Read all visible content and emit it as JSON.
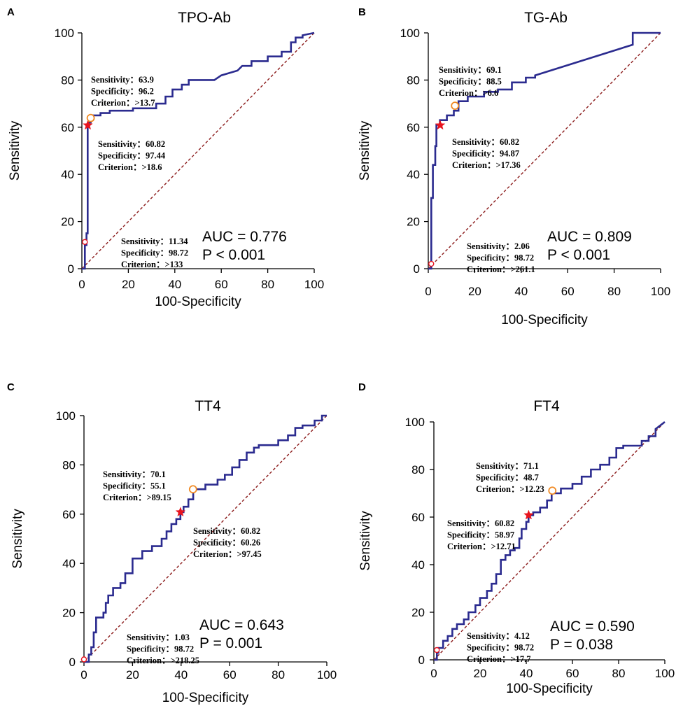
{
  "chart_data": [
    {
      "type": "line",
      "panel": "A",
      "title": "TPO-Ab",
      "xlabel": "100-Specificity",
      "ylabel": "Sensitivity",
      "xlim": [
        0,
        100
      ],
      "ylim": [
        0,
        100
      ],
      "xticks": [
        0,
        20,
        40,
        60,
        80,
        100
      ],
      "yticks": [
        0,
        20,
        40,
        60,
        80,
        100
      ],
      "roc": [
        [
          0,
          0
        ],
        [
          1.3,
          0
        ],
        [
          1.3,
          10
        ],
        [
          2,
          10
        ],
        [
          2,
          15
        ],
        [
          2.5,
          15
        ],
        [
          2.5,
          60.8
        ],
        [
          3,
          60.8
        ],
        [
          3,
          62
        ],
        [
          3.8,
          62
        ],
        [
          3.8,
          63.9
        ],
        [
          5,
          63.9
        ],
        [
          5,
          65
        ],
        [
          8,
          65
        ],
        [
          8,
          66
        ],
        [
          12,
          66
        ],
        [
          12,
          67
        ],
        [
          22,
          67
        ],
        [
          22,
          68
        ],
        [
          32,
          68
        ],
        [
          32,
          70
        ],
        [
          36,
          70
        ],
        [
          36,
          73
        ],
        [
          39,
          73
        ],
        [
          39,
          76
        ],
        [
          43,
          76
        ],
        [
          43,
          78
        ],
        [
          46,
          78
        ],
        [
          46,
          80
        ],
        [
          57,
          80
        ],
        [
          60,
          82
        ],
        [
          67,
          84
        ],
        [
          69,
          86
        ],
        [
          73,
          86
        ],
        [
          73,
          88
        ],
        [
          80,
          88
        ],
        [
          80,
          90
        ],
        [
          86,
          90
        ],
        [
          86,
          92
        ],
        [
          90,
          92
        ],
        [
          90,
          96
        ],
        [
          92,
          96
        ],
        [
          92,
          98
        ],
        [
          95,
          98
        ],
        [
          95,
          99
        ],
        [
          100,
          100
        ]
      ],
      "points": [
        {
          "kind": "open-red",
          "x": 1.3,
          "y": 11.34
        },
        {
          "kind": "star",
          "x": 2.56,
          "y": 60.82
        },
        {
          "kind": "open-orange",
          "x": 3.8,
          "y": 63.9
        }
      ],
      "annotations": [
        {
          "lines": [
            "Sensitivity：63.9",
            "Specificity：96.2",
            "Criterion：>13.7"
          ]
        },
        {
          "lines": [
            "Sensitivity：60.82",
            "Specificity：97.44",
            "Criterion：>18.6"
          ]
        },
        {
          "lines": [
            "Sensitivity：11.34",
            "Specificity：98.72",
            "Criterion：>133"
          ]
        }
      ],
      "auc": "AUC = 0.776",
      "p": "P < 0.001"
    },
    {
      "type": "line",
      "panel": "B",
      "title": "TG-Ab",
      "xlabel": "100-Specificity",
      "ylabel": "Sensitivity",
      "xlim": [
        0,
        100
      ],
      "ylim": [
        0,
        100
      ],
      "xticks": [
        0,
        20,
        40,
        60,
        80,
        100
      ],
      "yticks": [
        0,
        20,
        40,
        60,
        80,
        100
      ],
      "roc": [
        [
          0,
          0
        ],
        [
          1.3,
          0
        ],
        [
          1.3,
          2
        ],
        [
          1.3,
          30
        ],
        [
          2,
          30
        ],
        [
          2,
          44
        ],
        [
          3,
          44
        ],
        [
          3,
          52
        ],
        [
          3.5,
          52
        ],
        [
          3.5,
          61
        ],
        [
          5,
          61
        ],
        [
          5,
          63
        ],
        [
          8,
          63
        ],
        [
          8,
          65
        ],
        [
          11,
          65
        ],
        [
          11,
          67
        ],
        [
          13,
          67
        ],
        [
          13,
          71
        ],
        [
          17,
          71
        ],
        [
          17,
          73
        ],
        [
          24,
          73
        ],
        [
          24,
          75
        ],
        [
          30,
          75
        ],
        [
          30,
          76
        ],
        [
          36,
          76
        ],
        [
          36,
          79
        ],
        [
          42,
          79
        ],
        [
          42,
          81
        ],
        [
          46,
          81
        ],
        [
          46,
          82
        ],
        [
          88,
          95
        ],
        [
          88,
          99
        ],
        [
          88,
          100
        ],
        [
          100,
          100
        ]
      ],
      "points": [
        {
          "kind": "open-red",
          "x": 1.28,
          "y": 2.06
        },
        {
          "kind": "star",
          "x": 5.13,
          "y": 60.82
        },
        {
          "kind": "open-orange",
          "x": 11.5,
          "y": 69.1
        }
      ],
      "annotations": [
        {
          "lines": [
            "Sensitivity：69.1",
            "Specificity：88.5",
            "Criterion：>6.6"
          ]
        },
        {
          "lines": [
            "Sensitivity：60.82",
            "Specificity：94.87",
            "Criterion：>17.36"
          ]
        },
        {
          "lines": [
            "Sensitivity：2.06",
            "Specificity：98.72",
            "Criterion：>261.1"
          ]
        }
      ],
      "auc": "AUC = 0.809",
      "p": "P < 0.001"
    },
    {
      "type": "line",
      "panel": "C",
      "title": "TT4",
      "xlabel": "100-Specificity",
      "ylabel": "Sensitivity",
      "xlim": [
        0,
        100
      ],
      "ylim": [
        0,
        100
      ],
      "xticks": [
        0,
        20,
        40,
        60,
        80,
        100
      ],
      "yticks": [
        0,
        20,
        40,
        60,
        80,
        100
      ],
      "roc": [
        [
          0,
          0
        ],
        [
          2,
          0
        ],
        [
          2,
          3
        ],
        [
          3,
          3
        ],
        [
          3,
          6
        ],
        [
          4,
          6
        ],
        [
          4,
          12
        ],
        [
          5,
          12
        ],
        [
          5,
          18
        ],
        [
          8,
          18
        ],
        [
          8,
          20
        ],
        [
          9,
          20
        ],
        [
          9,
          24
        ],
        [
          10,
          24
        ],
        [
          10,
          27
        ],
        [
          12,
          27
        ],
        [
          12,
          30
        ],
        [
          15,
          30
        ],
        [
          15,
          32
        ],
        [
          17,
          32
        ],
        [
          17,
          36
        ],
        [
          20,
          36
        ],
        [
          20,
          42
        ],
        [
          24,
          42
        ],
        [
          24,
          45
        ],
        [
          28,
          45
        ],
        [
          28,
          47
        ],
        [
          32,
          47
        ],
        [
          32,
          50
        ],
        [
          34,
          50
        ],
        [
          34,
          53
        ],
        [
          36,
          53
        ],
        [
          36,
          56
        ],
        [
          38,
          56
        ],
        [
          38,
          58
        ],
        [
          39.7,
          58
        ],
        [
          39.7,
          60.8
        ],
        [
          41,
          60.8
        ],
        [
          41,
          63
        ],
        [
          43,
          63
        ],
        [
          43,
          66
        ],
        [
          45,
          66
        ],
        [
          45,
          70.1
        ],
        [
          50,
          70.1
        ],
        [
          50,
          72
        ],
        [
          55,
          72
        ],
        [
          55,
          74
        ],
        [
          58,
          74
        ],
        [
          58,
          76
        ],
        [
          61,
          76
        ],
        [
          61,
          79
        ],
        [
          64,
          79
        ],
        [
          64,
          82
        ],
        [
          67,
          82
        ],
        [
          67,
          85
        ],
        [
          70,
          85
        ],
        [
          70,
          87
        ],
        [
          72,
          87
        ],
        [
          72,
          88
        ],
        [
          80,
          88
        ],
        [
          80,
          90
        ],
        [
          84,
          90
        ],
        [
          84,
          92
        ],
        [
          87,
          92
        ],
        [
          87,
          95
        ],
        [
          90,
          95
        ],
        [
          90,
          96
        ],
        [
          95,
          96
        ],
        [
          95,
          98
        ],
        [
          98,
          98
        ],
        [
          98,
          100
        ],
        [
          100,
          100
        ]
      ],
      "points": [
        {
          "kind": "open-red",
          "x": 0,
          "y": 1.03
        },
        {
          "kind": "star",
          "x": 39.74,
          "y": 60.82
        },
        {
          "kind": "open-orange",
          "x": 44.9,
          "y": 70.1
        }
      ],
      "annotations": [
        {
          "lines": [
            "Sensitivity：70.1",
            "Specificity：55.1",
            "Criterion：>89.15"
          ]
        },
        {
          "lines": [
            "Sensitivity：60.82",
            "Specificity：60.26",
            "Criterion：>97.45"
          ]
        },
        {
          "lines": [
            "Sensitivity：1.03",
            "Specificity：98.72",
            "Criterion：>218.25"
          ]
        }
      ],
      "auc": "AUC = 0.643",
      "p": "P = 0.001"
    },
    {
      "type": "line",
      "panel": "D",
      "title": "FT4",
      "xlabel": "100-Specificity",
      "ylabel": "Sensitivity",
      "xlim": [
        0,
        100
      ],
      "ylim": [
        0,
        100
      ],
      "xticks": [
        0,
        20,
        40,
        60,
        80,
        100
      ],
      "yticks": [
        0,
        20,
        40,
        60,
        80,
        100
      ],
      "roc": [
        [
          0,
          0
        ],
        [
          1.3,
          0
        ],
        [
          1.3,
          3
        ],
        [
          2,
          3
        ],
        [
          2,
          5
        ],
        [
          4,
          5
        ],
        [
          4,
          8
        ],
        [
          6,
          8
        ],
        [
          6,
          10
        ],
        [
          8,
          10
        ],
        [
          8,
          13
        ],
        [
          10,
          13
        ],
        [
          10,
          15
        ],
        [
          13,
          15
        ],
        [
          13,
          17
        ],
        [
          15,
          17
        ],
        [
          15,
          20
        ],
        [
          18,
          20
        ],
        [
          18,
          23
        ],
        [
          20,
          23
        ],
        [
          20,
          26
        ],
        [
          23,
          26
        ],
        [
          23,
          29
        ],
        [
          25,
          29
        ],
        [
          25,
          32
        ],
        [
          27,
          32
        ],
        [
          27,
          36
        ],
        [
          29,
          36
        ],
        [
          29,
          42
        ],
        [
          31,
          42
        ],
        [
          31,
          44
        ],
        [
          33,
          44
        ],
        [
          33,
          46
        ],
        [
          35,
          46
        ],
        [
          35,
          47
        ],
        [
          37,
          47
        ],
        [
          37,
          51
        ],
        [
          38,
          51
        ],
        [
          38,
          55
        ],
        [
          40,
          55
        ],
        [
          40,
          58
        ],
        [
          41,
          58
        ],
        [
          41,
          60.8
        ],
        [
          43,
          60.8
        ],
        [
          43,
          62
        ],
        [
          46,
          62
        ],
        [
          46,
          64
        ],
        [
          49,
          64
        ],
        [
          49,
          67
        ],
        [
          51,
          67
        ],
        [
          51,
          70
        ],
        [
          55,
          70
        ],
        [
          55,
          72
        ],
        [
          60,
          72
        ],
        [
          60,
          74
        ],
        [
          64,
          74
        ],
        [
          64,
          77
        ],
        [
          68,
          77
        ],
        [
          68,
          80
        ],
        [
          72,
          80
        ],
        [
          72,
          82
        ],
        [
          76,
          82
        ],
        [
          76,
          85
        ],
        [
          79,
          85
        ],
        [
          79,
          89
        ],
        [
          82,
          89
        ],
        [
          82,
          90
        ],
        [
          90,
          90
        ],
        [
          90,
          92
        ],
        [
          93,
          92
        ],
        [
          93,
          94
        ],
        [
          96,
          94
        ],
        [
          96,
          97
        ],
        [
          100,
          100
        ]
      ],
      "points": [
        {
          "kind": "open-red",
          "x": 1.28,
          "y": 4.12
        },
        {
          "kind": "star",
          "x": 41.03,
          "y": 60.82
        },
        {
          "kind": "open-orange",
          "x": 51.3,
          "y": 71.1
        }
      ],
      "annotations": [
        {
          "lines": [
            "Sensitivity：71.1",
            "Specificity：48.7",
            "Criterion：>12.23"
          ]
        },
        {
          "lines": [
            "Sensitivity：60.82",
            "Specificity：58.97",
            "Criterion：>12.71"
          ]
        },
        {
          "lines": [
            "Sensitivity：4.12",
            "Specificity：98.72",
            "Criterion：>17.7"
          ]
        }
      ],
      "auc": "AUC = 0.590",
      "p": "P = 0.038"
    }
  ]
}
